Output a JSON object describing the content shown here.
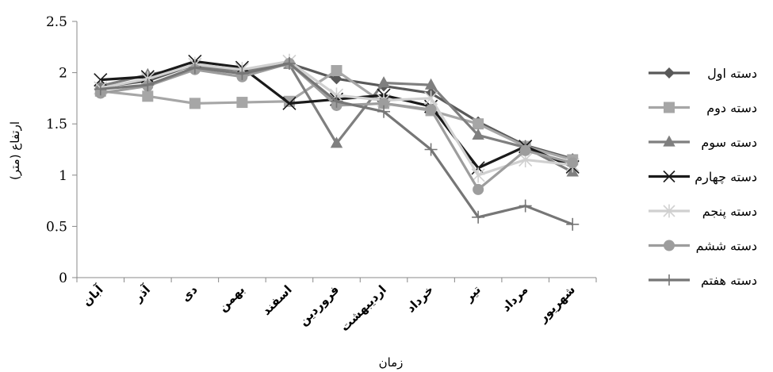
{
  "chart_data": {
    "type": "line",
    "xlabel": "زمان",
    "ylabel": "ارتفاع (متر)",
    "ylim": [
      0,
      2.5
    ],
    "yticks": [
      "0",
      "0.5",
      "1",
      "1.5",
      "2",
      "2.5"
    ],
    "categories": [
      "آبان",
      "آذر",
      "دی",
      "بهمن",
      "اسفند",
      "فروردین",
      "اردیبهشت",
      "خرداد",
      "تیر",
      "مرداد",
      "شهریور"
    ],
    "grid": false,
    "legend_position": "right",
    "series": [
      {
        "name": "دسته اول",
        "color": "#595959",
        "marker": "diamond",
        "values": [
          1.86,
          1.92,
          2.08,
          2.02,
          2.09,
          1.94,
          1.87,
          1.8,
          1.52,
          1.29,
          1.16
        ]
      },
      {
        "name": "دسته دوم",
        "color": "#a6a6a6",
        "marker": "square",
        "values": [
          1.82,
          1.77,
          1.7,
          1.71,
          1.72,
          2.02,
          1.7,
          1.63,
          1.5,
          1.28,
          1.15
        ]
      },
      {
        "name": "دسته سوم",
        "color": "#7f7f7f",
        "marker": "triangle",
        "values": [
          1.87,
          1.98,
          2.06,
          2.02,
          2.08,
          1.31,
          1.9,
          1.88,
          1.39,
          1.27,
          1.03
        ]
      },
      {
        "name": "دسته چهارم",
        "color": "#1a1a1a",
        "marker": "x",
        "values": [
          1.93,
          1.96,
          2.11,
          2.05,
          1.7,
          1.74,
          1.78,
          1.67,
          1.07,
          1.28,
          1.08
        ]
      },
      {
        "name": "دسته پنجم",
        "color": "#d0d0d0",
        "marker": "star",
        "values": [
          1.85,
          1.94,
          2.08,
          2.03,
          2.11,
          1.78,
          1.73,
          1.75,
          1.0,
          1.15,
          1.1
        ]
      },
      {
        "name": "دسته ششم",
        "color": "#9d9d9d",
        "marker": "circle",
        "values": [
          1.8,
          1.87,
          2.03,
          1.96,
          2.09,
          1.68,
          1.7,
          1.64,
          0.86,
          1.24,
          1.12
        ]
      },
      {
        "name": "دسته هفتم",
        "color": "#767676",
        "marker": "plus",
        "values": [
          1.84,
          1.88,
          2.05,
          1.99,
          2.09,
          1.72,
          1.62,
          1.25,
          0.59,
          0.7,
          0.52
        ]
      }
    ]
  }
}
